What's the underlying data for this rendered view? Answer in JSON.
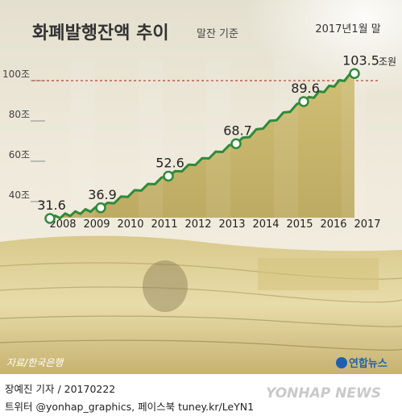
{
  "chart_data": {
    "type": "area",
    "title": "화폐발행잔액 추이",
    "subtitle": "말잔 기준",
    "unit": "조원",
    "categories": [
      "2008",
      "2009",
      "2010",
      "2011",
      "2012",
      "2013",
      "2014",
      "2015",
      "2016",
      "2017"
    ],
    "labeled_points": [
      {
        "x": 2008.0,
        "value": 31.6,
        "label": "31.6"
      },
      {
        "x": 2009.5,
        "value": 36.9,
        "label": "36.9"
      },
      {
        "x": 2011.5,
        "value": 52.6,
        "label": "52.6"
      },
      {
        "x": 2013.5,
        "value": 68.7,
        "label": "68.7"
      },
      {
        "x": 2015.5,
        "value": 89.6,
        "label": "89.6"
      },
      {
        "x": 2017.0,
        "value": 103.5,
        "label": "103.5"
      }
    ],
    "last_point_note": "2017년1월 말",
    "last_point_unit": "조원",
    "y_ticks": [
      {
        "value": 40,
        "label": "40조"
      },
      {
        "value": 60,
        "label": "60조"
      },
      {
        "value": 80,
        "label": "80조"
      },
      {
        "value": 100,
        "label": "100조"
      }
    ],
    "ylim": [
      20,
      110
    ],
    "colors": {
      "line": "#2f8a3a",
      "area": "#c9b766",
      "reference": "#c0392b",
      "title": "#333333"
    }
  },
  "source": "자료/한국은행",
  "logo": "연합뉴스",
  "watermark": "YONHAP NEWS",
  "credits": {
    "reporter": "장예진 기자 / 20170222",
    "sns": "트위터 @yonhap_graphics, 페이스북 tuney.kr/LeYN1"
  }
}
